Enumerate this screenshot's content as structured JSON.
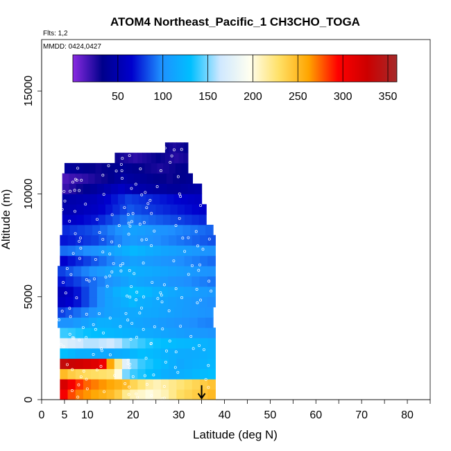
{
  "chart_data": {
    "type": "heatmap",
    "title": "ATOM4 Northeast_Pacific_1 CH3CHO_TOGA",
    "flights_note": "Flts: 1,2",
    "date_note": "MMDD: 0424,0427",
    "xlabel": "Latitude (deg N)",
    "ylabel": "Altitude (m)",
    "xlim": [
      0,
      85
    ],
    "ylim": [
      0,
      17500
    ],
    "xticks": [
      "0",
      "5",
      "10",
      "20",
      "30",
      "40",
      "50",
      "60",
      "70",
      "80"
    ],
    "yticks": [
      "0",
      "5000",
      "10000",
      "15000"
    ],
    "colorbar": {
      "range": [
        0,
        360
      ],
      "ticks": [
        "50",
        "100",
        "150",
        "200",
        "250",
        "300",
        "350"
      ],
      "colors": [
        "#8a2be2",
        "#00008b",
        "#0000cd",
        "#1e90ff",
        "#00bfff",
        "#cfe8ff",
        "#fffff0",
        "#ffe066",
        "#ffa500",
        "#ff0000",
        "#cc0000",
        "#a52a2a"
      ]
    },
    "arrow_latitude": 35,
    "grid": false,
    "bands": [
      {
        "alt": [
          0,
          500
        ],
        "lat": [
          4,
          38
        ],
        "values": [
          300,
          280,
          270,
          265,
          260,
          255,
          250,
          240,
          220,
          210,
          205,
          200,
          205,
          210,
          220,
          230,
          235,
          240,
          245,
          250
        ]
      },
      {
        "alt": [
          500,
          1000
        ],
        "lat": [
          4,
          38
        ],
        "values": [
          320,
          300,
          285,
          275,
          270,
          265,
          260,
          255,
          250,
          235,
          225,
          215,
          210,
          215,
          220,
          225,
          230,
          235,
          240,
          245
        ]
      },
      {
        "alt": [
          1000,
          1500
        ],
        "lat": [
          4,
          38
        ],
        "values": [
          250,
          240,
          235,
          232,
          230,
          228,
          225,
          200,
          150,
          140,
          135,
          130,
          125,
          120,
          118,
          120,
          122,
          125,
          128,
          130
        ]
      },
      {
        "alt": [
          1500,
          2000
        ],
        "lat": [
          4,
          38
        ],
        "values": [
          335,
          330,
          325,
          320,
          315,
          305,
          260,
          220,
          175,
          150,
          140,
          135,
          130,
          125,
          120,
          115,
          118,
          120,
          122,
          125
        ]
      },
      {
        "alt": [
          2000,
          2500
        ],
        "lat": [
          4,
          38
        ],
        "values": [
          130,
          125,
          120,
          120,
          118,
          116,
          115,
          118,
          120,
          125,
          130,
          128,
          125,
          122,
          120,
          118,
          117,
          118,
          120,
          122
        ]
      },
      {
        "alt": [
          2500,
          3000
        ],
        "lat": [
          4,
          38
        ],
        "values": [
          175,
          170,
          165,
          160,
          160,
          162,
          165,
          160,
          150,
          145,
          140,
          135,
          132,
          130,
          128,
          126,
          125,
          124,
          122,
          120
        ]
      },
      {
        "alt": [
          3000,
          3500
        ],
        "lat": [
          4,
          38
        ],
        "values": [
          140,
          138,
          135,
          132,
          130,
          128,
          126,
          124,
          122,
          120,
          118,
          116,
          114,
          112,
          110,
          108,
          106,
          105,
          104,
          102
        ]
      },
      {
        "alt": [
          3500,
          4000
        ],
        "lat": [
          3.5,
          37.5
        ],
        "values": [
          100,
          100,
          105,
          110,
          115,
          120,
          120,
          118,
          116,
          114,
          112,
          110,
          108,
          106,
          104,
          102,
          100,
          98,
          96,
          95
        ]
      },
      {
        "alt": [
          4000,
          4500
        ],
        "lat": [
          3.5,
          37.5
        ],
        "values": [
          80,
          85,
          90,
          95,
          100,
          105,
          110,
          112,
          114,
          115,
          116,
          115,
          114,
          112,
          110,
          108,
          106,
          104,
          102,
          100
        ]
      },
      {
        "alt": [
          4500,
          5000
        ],
        "lat": [
          3.5,
          38
        ],
        "values": [
          60,
          65,
          70,
          80,
          90,
          100,
          110,
          115,
          120,
          125,
          120,
          118,
          115,
          112,
          110,
          108,
          106,
          104,
          100,
          98
        ]
      },
      {
        "alt": [
          5000,
          5500
        ],
        "lat": [
          3.5,
          38
        ],
        "values": [
          55,
          60,
          70,
          80,
          90,
          100,
          110,
          120,
          125,
          130,
          128,
          125,
          120,
          118,
          115,
          112,
          110,
          108,
          106,
          104
        ]
      },
      {
        "alt": [
          5500,
          6000
        ],
        "lat": [
          3.5,
          38
        ],
        "values": [
          70,
          75,
          80,
          85,
          90,
          95,
          100,
          105,
          110,
          115,
          112,
          110,
          108,
          105,
          102,
          100,
          98,
          96,
          94,
          92
        ]
      },
      {
        "alt": [
          6000,
          6500
        ],
        "lat": [
          3.5,
          38
        ],
        "values": [
          80,
          85,
          90,
          95,
          100,
          105,
          110,
          115,
          118,
          120,
          118,
          116,
          114,
          112,
          110,
          108,
          106,
          104,
          102,
          100
        ]
      },
      {
        "alt": [
          6500,
          7000
        ],
        "lat": [
          4,
          38
        ],
        "values": [
          65,
          70,
          75,
          80,
          85,
          90,
          95,
          100,
          105,
          110,
          108,
          106,
          104,
          102,
          100,
          98,
          96,
          94,
          92,
          90
        ]
      },
      {
        "alt": [
          7000,
          7500
        ],
        "lat": [
          4,
          38
        ],
        "values": [
          90,
          92,
          95,
          98,
          100,
          105,
          110,
          115,
          120,
          125,
          122,
          118,
          115,
          112,
          110,
          108,
          106,
          104,
          102,
          100
        ]
      },
      {
        "alt": [
          7500,
          8000
        ],
        "lat": [
          4,
          38
        ],
        "values": [
          70,
          72,
          75,
          78,
          80,
          85,
          90,
          95,
          100,
          105,
          102,
          100,
          98,
          96,
          94,
          92,
          90,
          88,
          86,
          84
        ]
      },
      {
        "alt": [
          8000,
          8500
        ],
        "lat": [
          4.5,
          37.5
        ],
        "values": [
          75,
          78,
          80,
          82,
          85,
          90,
          95,
          100,
          105,
          110,
          108,
          105,
          102,
          100,
          98,
          96,
          94,
          92,
          90,
          88
        ]
      },
      {
        "alt": [
          8500,
          9000
        ],
        "lat": [
          4.5,
          36
        ],
        "values": [
          60,
          62,
          65,
          68,
          70,
          75,
          80,
          85,
          90,
          95,
          92,
          90,
          88,
          86,
          84,
          82,
          80,
          78,
          76,
          74
        ]
      },
      {
        "alt": [
          9000,
          9500
        ],
        "lat": [
          4.5,
          36
        ],
        "values": [
          50,
          52,
          55,
          58,
          60,
          65,
          70,
          75,
          80,
          85,
          82,
          80,
          78,
          76,
          74,
          72,
          70,
          68,
          66,
          64
        ]
      },
      {
        "alt": [
          9500,
          10000
        ],
        "lat": [
          4.5,
          35
        ],
        "values": [
          45,
          48,
          50,
          52,
          55,
          60,
          65,
          70,
          75,
          80,
          78,
          76,
          74,
          72,
          70,
          68,
          66,
          64,
          62,
          60
        ]
      },
      {
        "alt": [
          10000,
          10500
        ],
        "lat": [
          4.5,
          35
        ],
        "values": [
          20,
          25,
          30,
          35,
          40,
          45,
          50,
          55,
          60,
          55,
          50,
          48,
          46,
          44,
          42,
          40,
          40,
          42,
          44,
          46
        ]
      },
      {
        "alt": [
          10500,
          11000
        ],
        "lat": [
          4.5,
          33
        ],
        "values": [
          15,
          18,
          20,
          22,
          25,
          28,
          30,
          35,
          40,
          45,
          42,
          40,
          38,
          36,
          34,
          32,
          30,
          32,
          34,
          36
        ]
      },
      {
        "alt": [
          11000,
          11500
        ],
        "lat": [
          5,
          32
        ],
        "values": [
          40,
          38,
          36,
          34,
          32,
          30,
          32,
          34,
          36,
          38,
          36,
          34,
          32,
          30,
          28,
          26,
          28,
          30,
          32,
          34
        ]
      },
      {
        "alt": [
          11500,
          12000
        ],
        "lat": [
          16,
          32
        ],
        "values": [
          30,
          28,
          26,
          24,
          22,
          24,
          26,
          28,
          30,
          32,
          30,
          28,
          26,
          24,
          26,
          28
        ]
      },
      {
        "alt": [
          12000,
          12500
        ],
        "lat": [
          27,
          32
        ],
        "values": [
          30,
          28,
          26,
          28,
          30,
          32
        ]
      }
    ]
  }
}
